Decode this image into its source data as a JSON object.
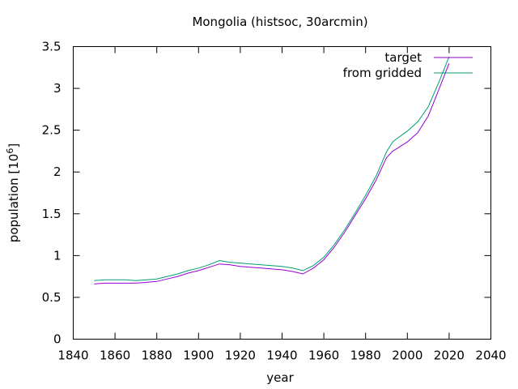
{
  "chart_data": {
    "type": "line",
    "title": "Mongolia (histsoc, 30arcmin)",
    "xlabel": "year",
    "ylabel_prefix": "population [10",
    "ylabel_exponent": "6",
    "ylabel_suffix": "]",
    "xlim": [
      1840,
      2040
    ],
    "ylim": [
      0,
      3.5
    ],
    "xticks": [
      1840,
      1860,
      1880,
      1900,
      1920,
      1940,
      1960,
      1980,
      2000,
      2020,
      2040
    ],
    "yticks": [
      0,
      0.5,
      1,
      1.5,
      2,
      2.5,
      3,
      3.5
    ],
    "ytick_labels": [
      "0",
      "0.5",
      "1",
      "1.5",
      "2",
      "2.5",
      "3",
      "3.5"
    ],
    "legend_position": "top-right",
    "series": [
      {
        "name": "target",
        "color": "#9400d3",
        "x": [
          1850,
          1855,
          1860,
          1865,
          1870,
          1875,
          1880,
          1885,
          1890,
          1895,
          1900,
          1905,
          1910,
          1915,
          1920,
          1925,
          1930,
          1935,
          1940,
          1945,
          1950,
          1955,
          1960,
          1965,
          1970,
          1975,
          1980,
          1985,
          1990,
          1993,
          1995,
          2000,
          2005,
          2010,
          2015,
          2020
        ],
        "y": [
          0.66,
          0.67,
          0.67,
          0.67,
          0.67,
          0.68,
          0.69,
          0.72,
          0.75,
          0.79,
          0.82,
          0.86,
          0.9,
          0.89,
          0.87,
          0.86,
          0.85,
          0.84,
          0.83,
          0.81,
          0.78,
          0.85,
          0.95,
          1.1,
          1.28,
          1.48,
          1.68,
          1.9,
          2.17,
          2.25,
          2.28,
          2.36,
          2.47,
          2.67,
          2.98,
          3.3
        ]
      },
      {
        "name": "from gridded",
        "color": "#009e73",
        "x": [
          1850,
          1855,
          1860,
          1865,
          1870,
          1875,
          1880,
          1885,
          1890,
          1895,
          1900,
          1905,
          1910,
          1915,
          1920,
          1925,
          1930,
          1935,
          1940,
          1945,
          1950,
          1955,
          1960,
          1965,
          1970,
          1975,
          1980,
          1985,
          1990,
          1993,
          1995,
          2000,
          2005,
          2010,
          2015,
          2020
        ],
        "y": [
          0.7,
          0.71,
          0.71,
          0.71,
          0.7,
          0.71,
          0.72,
          0.75,
          0.78,
          0.82,
          0.85,
          0.89,
          0.94,
          0.92,
          0.91,
          0.9,
          0.89,
          0.88,
          0.87,
          0.85,
          0.82,
          0.88,
          0.98,
          1.13,
          1.31,
          1.51,
          1.72,
          1.95,
          2.24,
          2.36,
          2.4,
          2.49,
          2.6,
          2.78,
          3.07,
          3.38
        ]
      }
    ]
  }
}
